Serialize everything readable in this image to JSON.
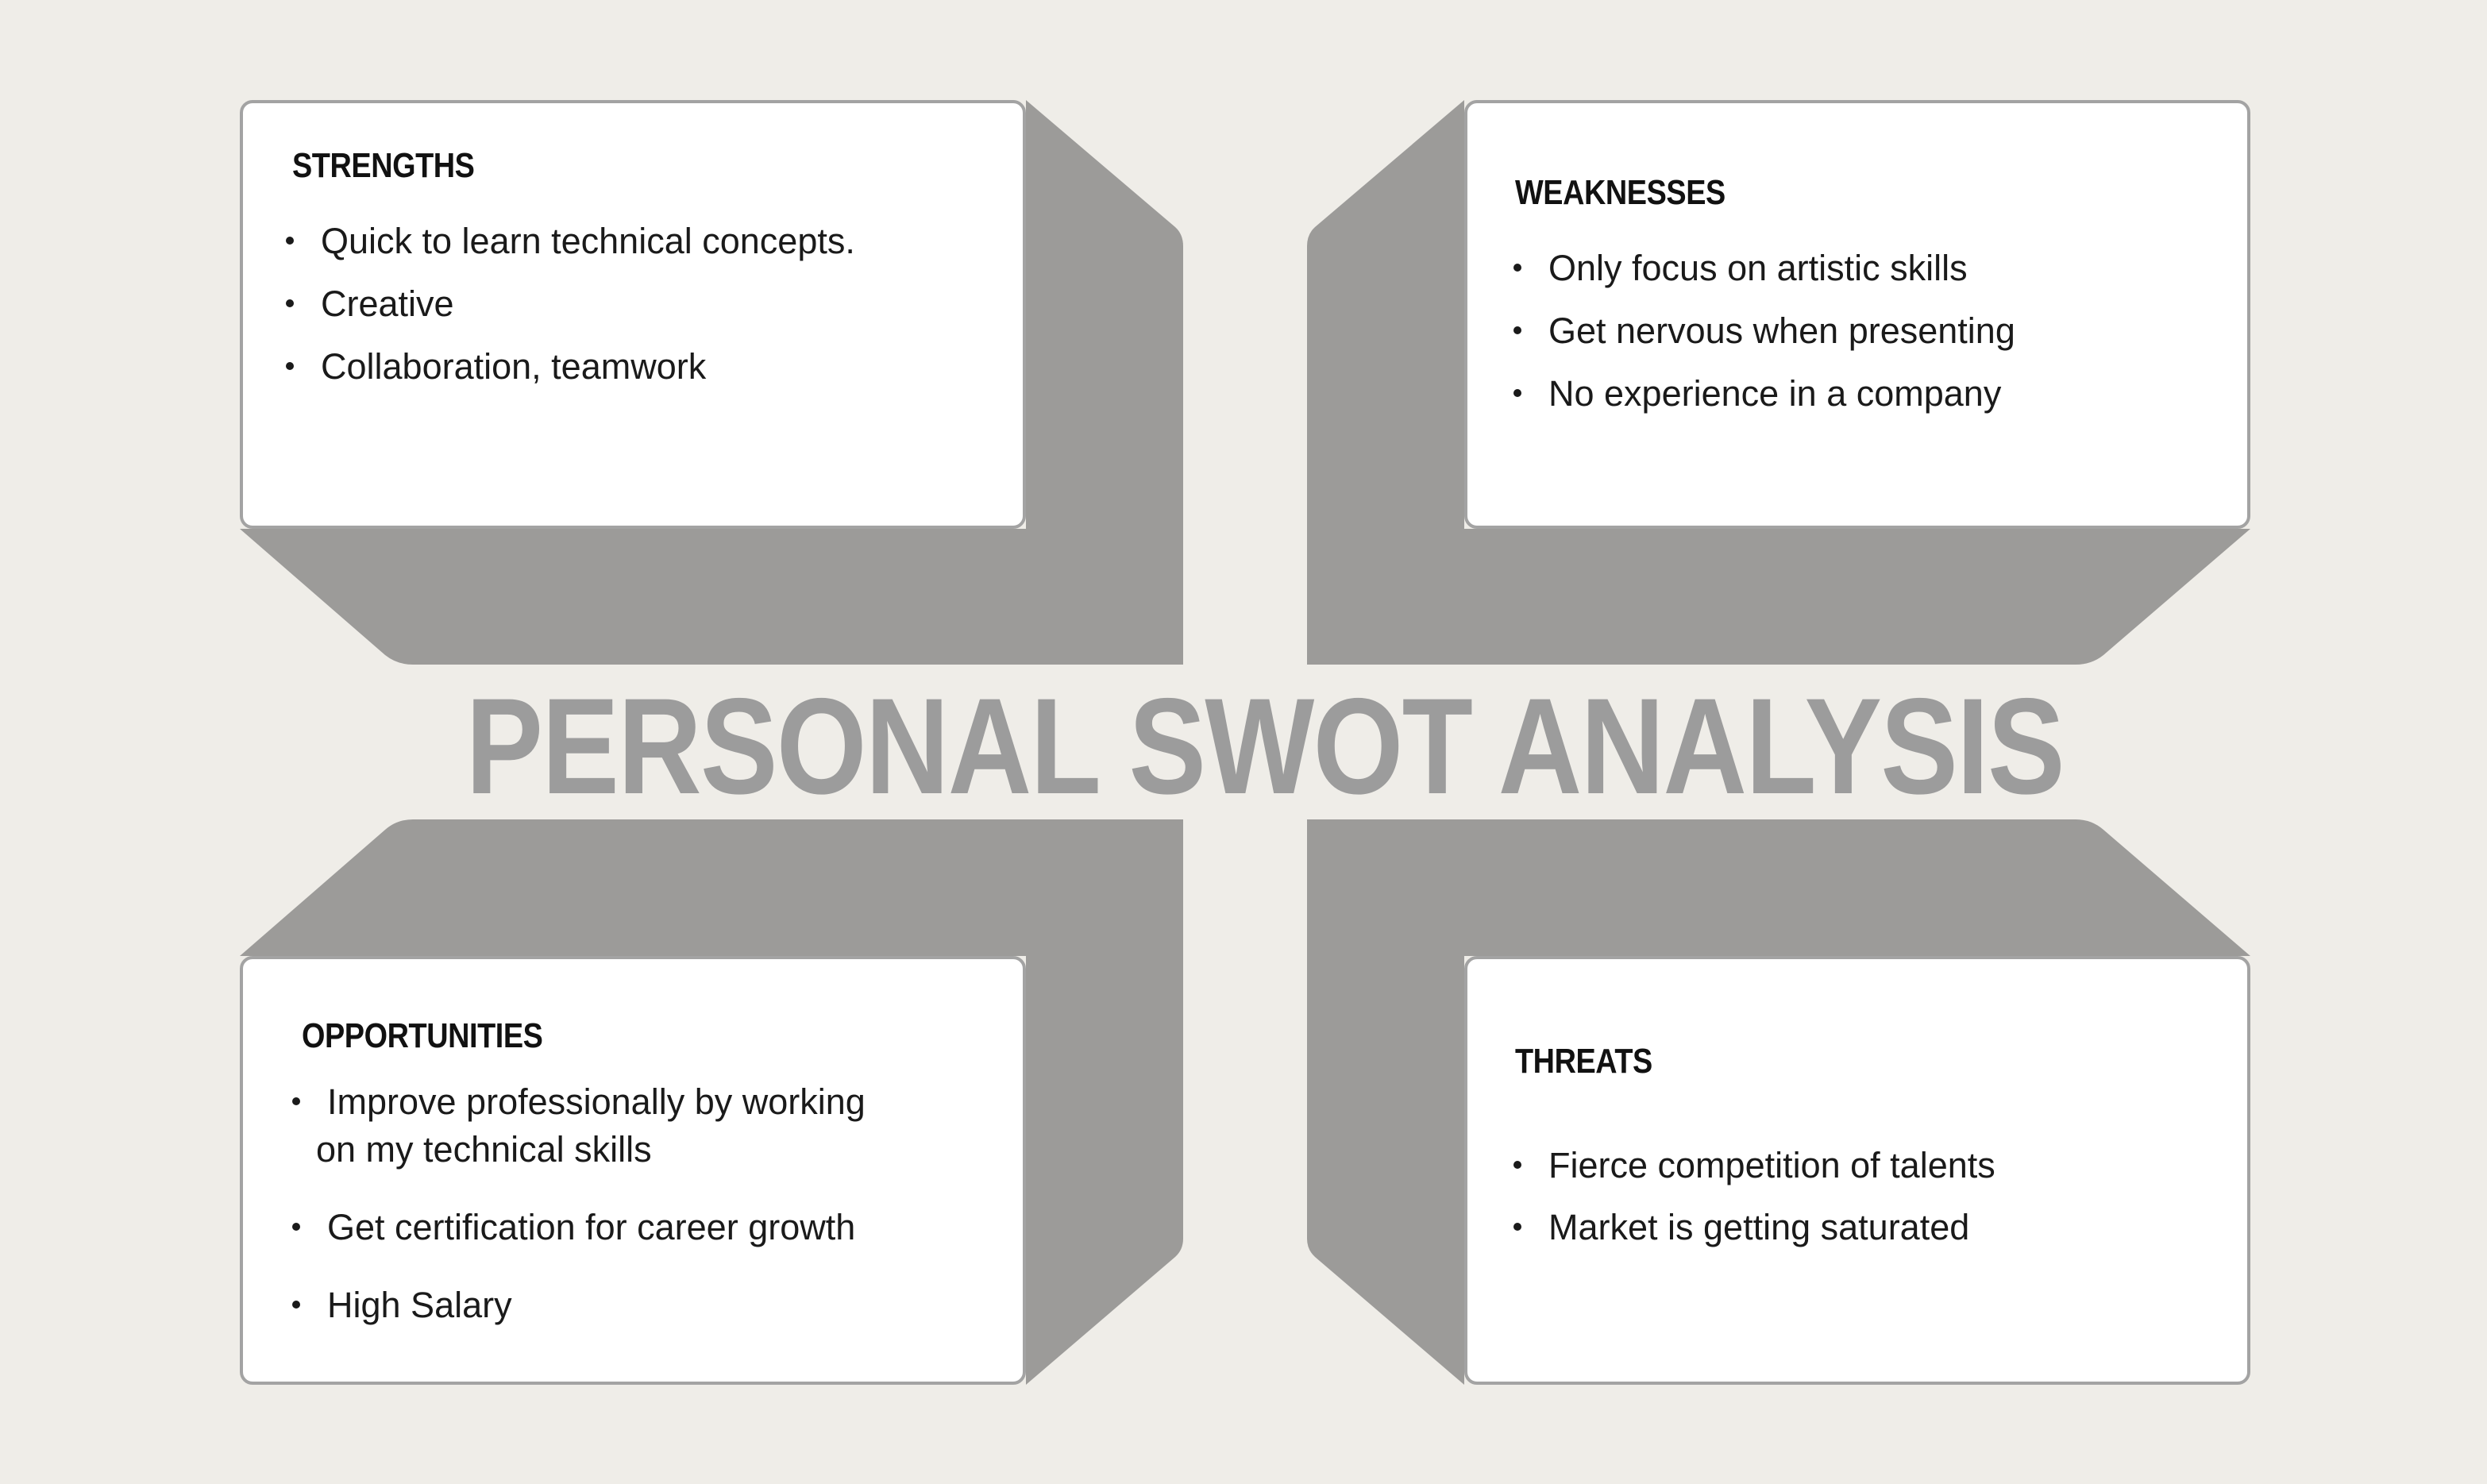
{
  "title": "PERSONAL SWOT ANALYSIS",
  "colors": {
    "background": "#efede8",
    "card": "#ffffff",
    "shadow": "#9c9b99",
    "title": "#9c9c9c",
    "text": "#111111"
  },
  "quadrants": {
    "strengths": {
      "heading": "STRENGTHS",
      "items": [
        "Quick to learn technical concepts.",
        "Creative",
        "Collaboration, teamwork"
      ]
    },
    "weaknesses": {
      "heading": "WEAKNESSES",
      "items": [
        "Only focus on artistic skills",
        "Get nervous when presenting",
        "No experience in a company"
      ]
    },
    "opportunities": {
      "heading": "OPPORTUNITIES",
      "items": [
        "Improve professionally by working",
        "on my technical skills",
        "Get certification for career growth",
        "High Salary"
      ]
    },
    "threats": {
      "heading": "THREATS",
      "items": [
        "Fierce competition of talents",
        "Market is getting saturated"
      ]
    }
  }
}
